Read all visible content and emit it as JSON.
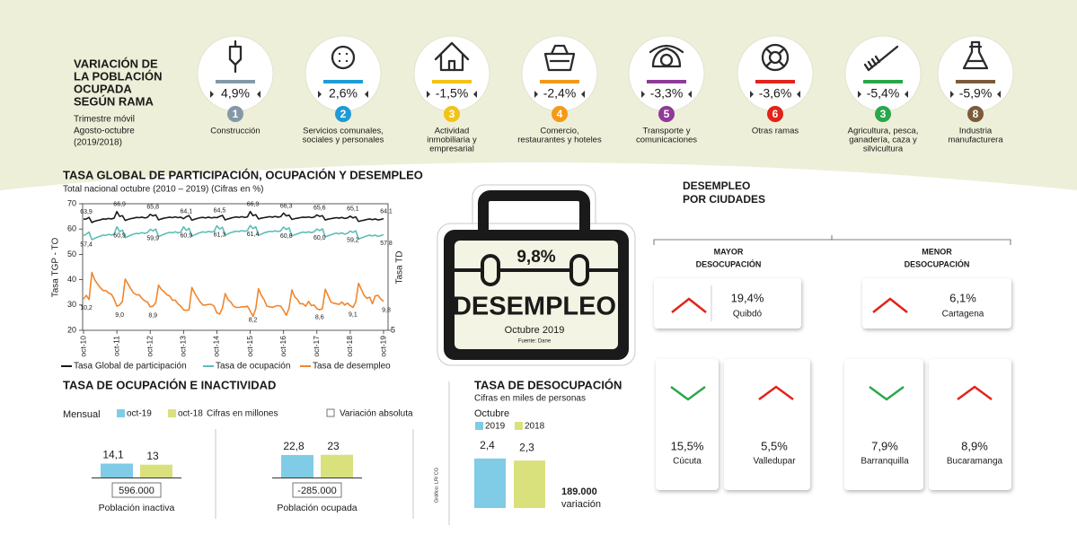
{
  "header": {
    "title": [
      "VARIACIÓN DE",
      "LA POBLACIÓN",
      "OCUPADA",
      "SEGÚN RAMA"
    ],
    "subtitle": [
      "Trimestre móvil",
      "Agosto-octubre",
      "(2019/2018)"
    ]
  },
  "sectors": [
    {
      "value": "4,9%",
      "rank": "1",
      "name": [
        "Construcción"
      ],
      "color": "#8499a6"
    },
    {
      "value": "2,6%",
      "rank": "2",
      "name": [
        "Servicios comunales,",
        "sociales y personales"
      ],
      "color": "#1f9bd7"
    },
    {
      "value": "-1,5%",
      "rank": "3",
      "name": [
        "Actividad",
        "inmobiliaria y",
        "empresarial"
      ],
      "color": "#f2c318"
    },
    {
      "value": "-2,4%",
      "rank": "4",
      "name": [
        "Comercio,",
        "restaurantes y hoteles"
      ],
      "color": "#f39a16"
    },
    {
      "value": "-3,3%",
      "rank": "5",
      "name": [
        "Transporte y",
        "comunicaciones"
      ],
      "color": "#8f3a97"
    },
    {
      "value": "-3,6%",
      "rank": "6",
      "name": [
        "Otras ramas"
      ],
      "color": "#e2231a"
    },
    {
      "value": "-5,4%",
      "rank": "3",
      "name": [
        "Agricultura, pesca,",
        "ganadería, caza y",
        "silvicultura"
      ],
      "color": "#2aa74a"
    },
    {
      "value": "-5,9%",
      "rank": "8",
      "name": [
        "Industria",
        "manufacturera"
      ],
      "color": "#7b5b3b"
    }
  ],
  "chart_data": [
    {
      "type": "line",
      "title": "TASA GLOBAL DE PARTICIPACIÓN, OCUPACIÓN Y DESEMPLEO",
      "subtitle": "Total nacional octubre (2010 – 2019)   (Cifras en %)",
      "ylabel": "Tasa TGP - TO",
      "y2label": "Tasa TD",
      "ylim": [
        20,
        70
      ],
      "yticks": [
        20,
        30,
        40,
        50,
        60,
        70
      ],
      "y2lim": [
        5,
        26
      ],
      "y2ticks": [
        5
      ],
      "grid": false,
      "categories": [
        "oct-10",
        null,
        null,
        null,
        null,
        null,
        null,
        null,
        null,
        null,
        null,
        null,
        "oct-11",
        null,
        null,
        null,
        null,
        null,
        null,
        null,
        null,
        null,
        null,
        null,
        "oct-12",
        null,
        null,
        null,
        null,
        null,
        null,
        null,
        null,
        null,
        null,
        null,
        "oct-13",
        null,
        null,
        null,
        null,
        null,
        null,
        null,
        null,
        null,
        null,
        null,
        "oct-14",
        null,
        null,
        null,
        null,
        null,
        null,
        null,
        null,
        null,
        null,
        null,
        "oct-15",
        null,
        null,
        null,
        null,
        null,
        null,
        null,
        null,
        null,
        null,
        null,
        "oct-16",
        null,
        null,
        null,
        null,
        null,
        null,
        null,
        null,
        null,
        null,
        null,
        "oct-17",
        null,
        null,
        null,
        null,
        null,
        null,
        null,
        null,
        null,
        null,
        null,
        "oct-18",
        null,
        null,
        null,
        null,
        null,
        null,
        null,
        null,
        null,
        null,
        null,
        "oct-19"
      ],
      "series": [
        {
          "name": "Tasa Global de participación",
          "color": "#1a1a1a",
          "values": [
            63.9,
            64.0,
            64.6,
            62.6,
            63.1,
            63.4,
            63.6,
            64.0,
            63.9,
            64.2,
            64.0,
            64.3,
            66.9,
            65.0,
            65.3,
            63.4,
            63.8,
            64.1,
            64.3,
            64.6,
            64.5,
            64.7,
            64.4,
            64.6,
            65.8,
            65.2,
            65.6,
            63.6,
            64.0,
            64.3,
            64.5,
            64.7,
            64.5,
            64.8,
            64.5,
            64.7,
            64.1,
            64.9,
            65.3,
            63.5,
            63.9,
            64.2,
            64.5,
            64.6,
            64.4,
            64.7,
            64.4,
            64.6,
            64.5,
            65.0,
            65.4,
            63.6,
            64.0,
            64.3,
            64.6,
            64.8,
            64.6,
            64.9,
            64.6,
            64.8,
            66.9,
            65.3,
            65.7,
            64.0,
            64.3,
            64.5,
            64.7,
            64.9,
            64.7,
            65.0,
            64.7,
            64.9,
            66.3,
            65.2,
            65.5,
            63.8,
            64.1,
            64.3,
            64.5,
            64.7,
            64.6,
            64.8,
            64.5,
            64.7,
            65.6,
            65.0,
            65.3,
            63.6,
            63.9,
            64.1,
            64.3,
            64.5,
            64.3,
            64.6,
            64.2,
            64.4,
            65.1,
            64.4,
            64.8,
            63.0,
            63.3,
            63.5,
            63.8,
            64.0,
            63.7,
            64.0,
            63.6,
            63.8,
            64.1
          ],
          "value_labels": [
            "63,9",
            null,
            null,
            null,
            null,
            null,
            null,
            null,
            null,
            null,
            null,
            null,
            "66,9",
            null,
            null,
            null,
            null,
            null,
            null,
            null,
            null,
            null,
            null,
            null,
            "65,8",
            null,
            null,
            null,
            null,
            null,
            null,
            null,
            null,
            null,
            null,
            null,
            "64,1",
            null,
            null,
            null,
            null,
            null,
            null,
            null,
            null,
            null,
            null,
            null,
            "64,5",
            null,
            null,
            null,
            null,
            null,
            null,
            null,
            null,
            null,
            null,
            null,
            "66,9",
            null,
            null,
            null,
            null,
            null,
            null,
            null,
            null,
            null,
            null,
            null,
            "66,3",
            null,
            null,
            null,
            null,
            null,
            null,
            null,
            null,
            null,
            null,
            null,
            "65,6",
            null,
            null,
            null,
            null,
            null,
            null,
            null,
            null,
            null,
            null,
            null,
            "65,1",
            null,
            null,
            null,
            null,
            null,
            null,
            null,
            null,
            null,
            null,
            null,
            "64,1"
          ]
        },
        {
          "name": "Tasa de ocupación",
          "color": "#5cbdb9",
          "values": [
            57.4,
            58.0,
            58.8,
            55.8,
            56.3,
            56.8,
            57.2,
            57.6,
            57.5,
            57.9,
            57.6,
            58.0,
            60.9,
            59.0,
            59.6,
            56.6,
            57.1,
            57.6,
            58.0,
            58.3,
            58.2,
            58.6,
            58.3,
            58.6,
            59.9,
            59.3,
            60.0,
            57.0,
            57.5,
            58.0,
            58.4,
            58.7,
            58.5,
            58.9,
            58.5,
            58.8,
            60.9,
            59.5,
            60.3,
            57.2,
            57.7,
            58.2,
            58.6,
            58.9,
            58.7,
            59.1,
            58.8,
            59.1,
            61.3,
            60.0,
            60.7,
            57.6,
            58.1,
            58.6,
            58.9,
            59.2,
            59.0,
            59.4,
            59.1,
            59.4,
            61.4,
            60.2,
            60.9,
            57.6,
            58.0,
            58.5,
            58.8,
            59.1,
            59.0,
            59.3,
            59.0,
            59.3,
            60.8,
            59.8,
            60.5,
            57.3,
            57.7,
            58.1,
            58.5,
            58.8,
            58.6,
            58.9,
            58.6,
            58.9,
            60.0,
            59.4,
            60.1,
            56.9,
            57.3,
            57.7,
            58.1,
            58.4,
            58.1,
            58.5,
            58.0,
            58.3,
            59.2,
            58.7,
            59.3,
            56.1,
            56.5,
            56.9,
            57.3,
            57.6,
            57.3,
            57.6,
            57.1,
            57.4,
            57.8
          ],
          "value_labels": [
            "57,4",
            null,
            null,
            null,
            null,
            null,
            null,
            null,
            null,
            null,
            null,
            null,
            "60,9",
            null,
            null,
            null,
            null,
            null,
            null,
            null,
            null,
            null,
            null,
            null,
            "59,9",
            null,
            null,
            null,
            null,
            null,
            null,
            null,
            null,
            null,
            null,
            null,
            "60,9",
            null,
            null,
            null,
            null,
            null,
            null,
            null,
            null,
            null,
            null,
            null,
            "61,3",
            null,
            null,
            null,
            null,
            null,
            null,
            null,
            null,
            null,
            null,
            null,
            "61,4",
            null,
            null,
            null,
            null,
            null,
            null,
            null,
            null,
            null,
            null,
            null,
            "60,8",
            null,
            null,
            null,
            null,
            null,
            null,
            null,
            null,
            null,
            null,
            null,
            "60,0",
            null,
            null,
            null,
            null,
            null,
            null,
            null,
            null,
            null,
            null,
            null,
            "59,2",
            null,
            null,
            null,
            null,
            null,
            null,
            null,
            null,
            null,
            null,
            null,
            "57,8"
          ]
        },
        {
          "name": "Tasa de desempleo",
          "color": "#f0862e",
          "axis": "y2",
          "values": [
            10.2,
            10.8,
            10.1,
            14.6,
            13.4,
            12.7,
            12.1,
            11.6,
            11.6,
            11.2,
            11.0,
            10.2,
            9.0,
            9.2,
            9.8,
            13.5,
            12.7,
            11.9,
            11.2,
            10.9,
            10.9,
            10.3,
            9.9,
            9.7,
            8.9,
            9.0,
            9.6,
            12.5,
            11.8,
            11.4,
            10.9,
            10.7,
            10.0,
            10.0,
            9.4,
            9.0,
            8.4,
            8.3,
            8.4,
            12.1,
            11.2,
            10.4,
            9.7,
            9.2,
            9.2,
            9.3,
            9.3,
            9.0,
            7.9,
            7.7,
            8.7,
            11.1,
            10.1,
            9.7,
            9.0,
            8.8,
            8.8,
            8.9,
            8.9,
            9.0,
            8.2,
            7.3,
            8.6,
            11.9,
            10.8,
            10.1,
            9.0,
            8.9,
            8.8,
            9.0,
            9.1,
            9.0,
            8.3,
            7.5,
            8.7,
            11.7,
            10.6,
            10.1,
            9.4,
            9.4,
            9.0,
            9.8,
            9.1,
            9.2,
            8.6,
            8.4,
            8.6,
            11.8,
            10.8,
            9.7,
            9.5,
            9.4,
            9.3,
            9.7,
            9.2,
            9.5,
            9.1,
            8.8,
            9.7,
            12.8,
            11.8,
            10.8,
            10.3,
            10.5,
            9.4,
            10.7,
            10.8,
            10.2,
            9.8
          ],
          "value_labels": [
            "10,2",
            null,
            null,
            null,
            null,
            null,
            null,
            null,
            null,
            null,
            null,
            null,
            "9,0",
            null,
            null,
            null,
            null,
            null,
            null,
            null,
            null,
            null,
            null,
            null,
            "8,9",
            null,
            null,
            null,
            null,
            null,
            null,
            null,
            null,
            null,
            null,
            null,
            null,
            null,
            null,
            null,
            null,
            null,
            null,
            null,
            null,
            null,
            null,
            null,
            null,
            null,
            null,
            null,
            null,
            null,
            null,
            null,
            null,
            null,
            null,
            null,
            "8,2",
            null,
            null,
            null,
            null,
            null,
            null,
            null,
            null,
            null,
            null,
            null,
            null,
            null,
            null,
            null,
            null,
            null,
            null,
            null,
            null,
            null,
            null,
            null,
            "8,6",
            null,
            null,
            null,
            null,
            null,
            null,
            null,
            null,
            null,
            null,
            null,
            "9,1",
            null,
            null,
            null,
            null,
            null,
            null,
            null,
            null,
            null,
            null,
            null,
            "9,8"
          ]
        }
      ]
    },
    {
      "type": "bar",
      "title": "TASA DE OCUPACIÓN E INACTIVIDAD",
      "period": "Mensual",
      "unit_note": "Cifras en millones",
      "variation_note": "Variación absoluta",
      "categories": [
        "Población inactiva",
        "Población ocupada"
      ],
      "series": [
        {
          "name": "oct-19",
          "color": "#80cce6",
          "values": [
            14.1,
            22.8
          ],
          "value_labels": [
            "14,1",
            "22,8"
          ]
        },
        {
          "name": "oct-18",
          "color": "#d9e17d",
          "values": [
            13,
            23
          ]
        }
      ],
      "variations": [
        "596.000",
        "-285.000"
      ]
    },
    {
      "type": "bar",
      "title": "TASA DE DESOCUPACIÓN",
      "subtitle": "Cifras en miles de personas",
      "period": "Octubre",
      "series": [
        {
          "name": "2019",
          "color": "#80cce6",
          "values": [
            2.4
          ],
          "value_labels": [
            "2,4"
          ]
        },
        {
          "name": "2018",
          "color": "#d9e17d",
          "values": [
            2.3
          ],
          "value_labels": [
            "2,3"
          ]
        }
      ],
      "variation": "189.000",
      "variation_note": "variación"
    }
  ],
  "unemployment_card": {
    "value": "9,8%",
    "label": "DESEMPLEO",
    "period": "Octubre 2019",
    "source": "Fuente: Dane"
  },
  "cities": {
    "title": [
      "DESEMPLEO",
      "POR CIUDADES"
    ],
    "groups": [
      {
        "title": [
          "MAYOR",
          "DESOCUPACIÓN"
        ],
        "cities": [
          {
            "value": "19,4%",
            "name": "Quibdó"
          },
          {
            "value": "15,5%",
            "name": "Cúcuta"
          },
          {
            "value": "5,5%",
            "name": "Valledupar"
          }
        ]
      },
      {
        "title": [
          "MENOR",
          "DESOCUPACIÓN"
        ],
        "cities": [
          {
            "value": "6,1%",
            "name": "Cartagena"
          },
          {
            "value": "7,9%",
            "name": "Barranquilla"
          },
          {
            "value": "8,9%",
            "name": "Bucaramanga"
          }
        ]
      }
    ]
  },
  "credit": "Gráfico: LR/ CG"
}
